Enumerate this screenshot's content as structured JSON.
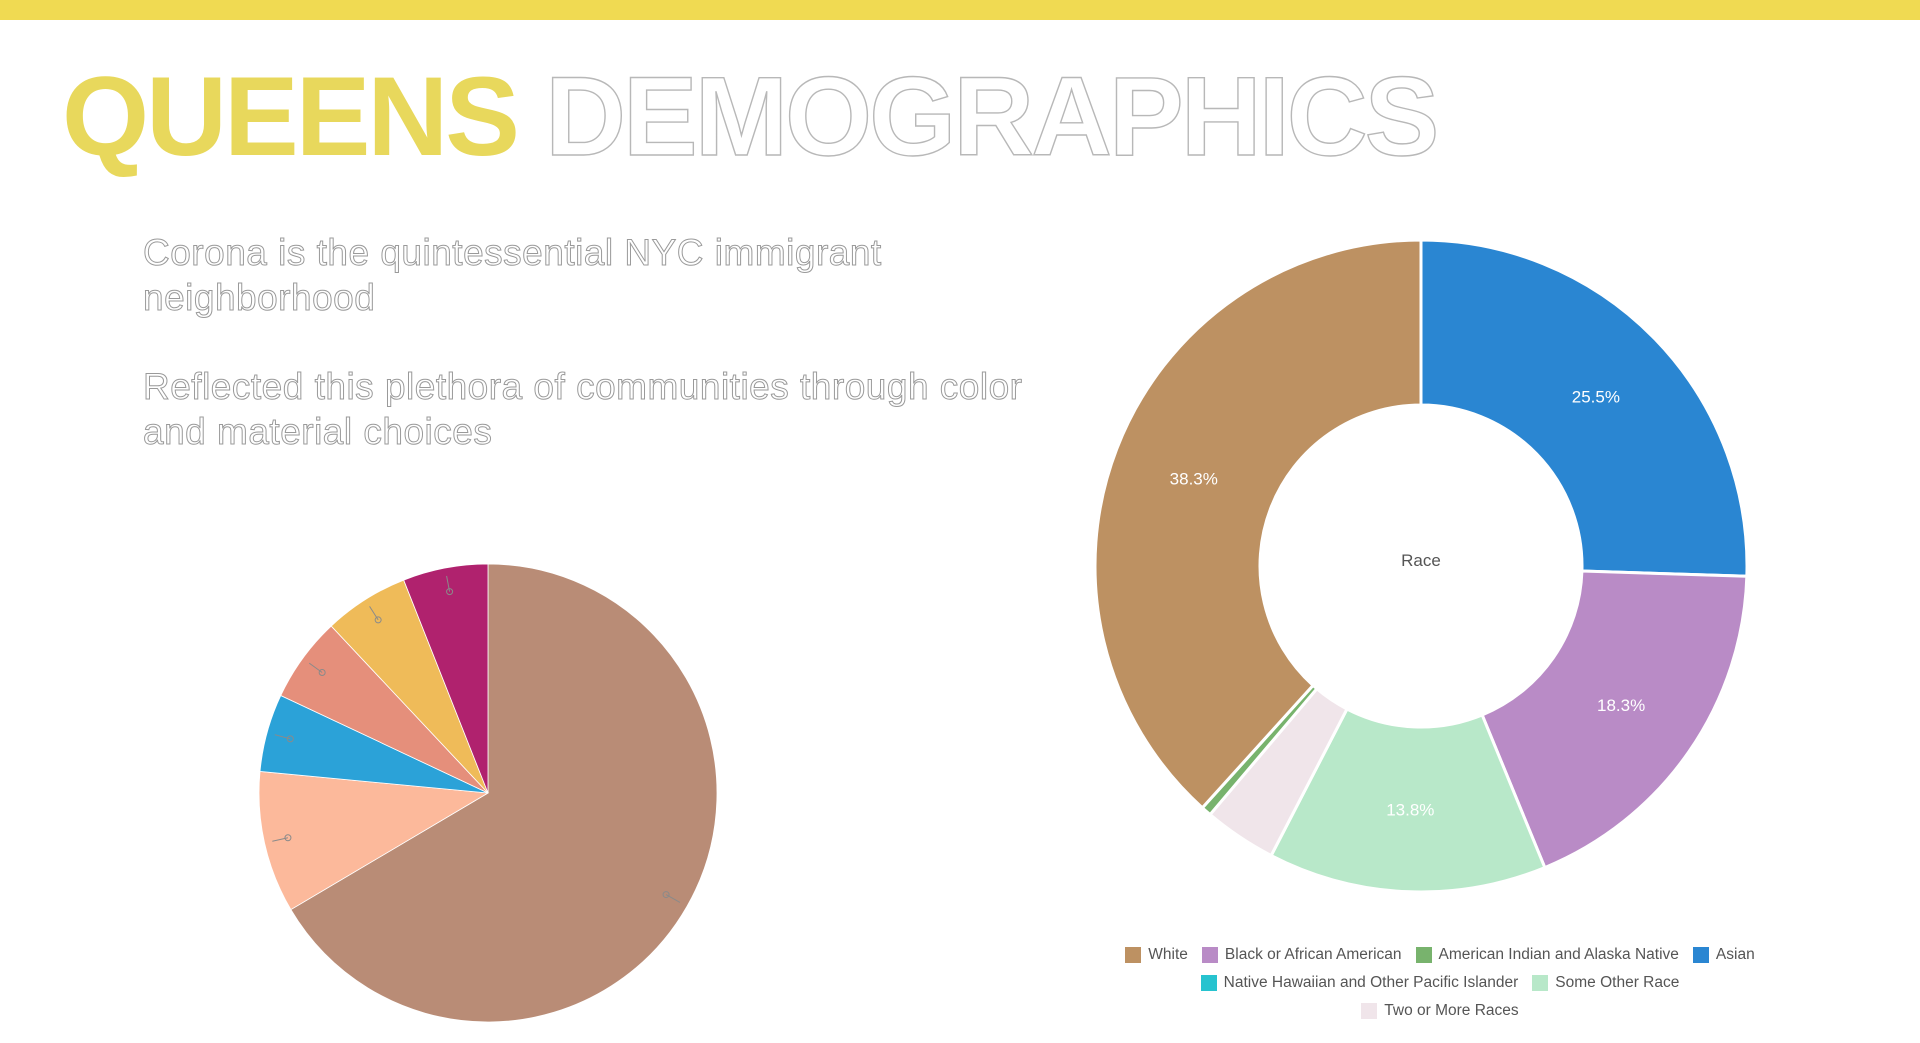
{
  "slide": {
    "title_part1": "QUEENS",
    "title_part2": "DEMOGRAPHICS",
    "paragraph1": "Corona is the quintessential NYC immigrant neighborhood",
    "paragraph2": "Reflected this plethora of communities through color and material choices",
    "accent_color": "#f0da52"
  },
  "chart_data": [
    {
      "type": "pie",
      "title": "",
      "categories": [
        "",
        "",
        "",
        "",
        "",
        ""
      ],
      "values": [
        66.5,
        10.0,
        5.5,
        6.0,
        6.0,
        6.0
      ],
      "colors": [
        "#b98c76",
        "#fcb99b",
        "#2ba2d8",
        "#e58f7b",
        "#efbb59",
        "#b0226e"
      ],
      "data_labels": [],
      "legend": "none"
    },
    {
      "type": "pie",
      "variant": "donut",
      "center_label": "Race",
      "categories": [
        "White",
        "Black or African American",
        "American Indian and Alaska Native",
        "Asian",
        "Native Hawaiian and Other Pacific Islander",
        "Some Other Race",
        "Two or More Races"
      ],
      "values": [
        38.3,
        18.3,
        0.5,
        25.5,
        0.0,
        13.8,
        3.6
      ],
      "colors": [
        "#bd9162",
        "#b98bc6",
        "#78b36d",
        "#2a86d2",
        "#27c3cf",
        "#b8e8c9",
        "#f0e5ea"
      ],
      "data_labels": [
        "38.3%",
        "18.3%",
        "",
        "25.5%",
        "",
        "13.8%",
        ""
      ],
      "order_clockwise_from_top": [
        "Asian",
        "Black or African American",
        "Some Other Race",
        "Two or More Races",
        "American Indian and Alaska Native",
        "White"
      ],
      "legend": "bottom"
    }
  ]
}
